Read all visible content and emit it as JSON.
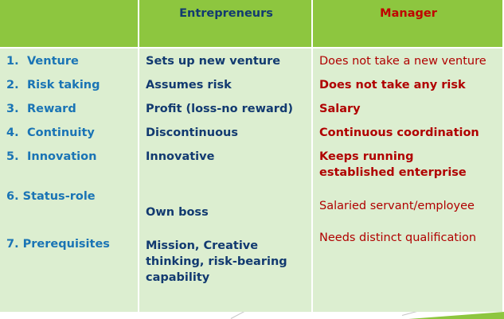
{
  "header": {
    "col1": "",
    "col2": "Entrepreneurs",
    "col3": "Manager"
  },
  "rows": [
    {
      "num": "1.",
      "feature": "Venture",
      "entrepreneur": "Sets up new venture",
      "manager": "Does not take a new venture"
    },
    {
      "num": "2.",
      "feature": "Risk taking",
      "entrepreneur": "Assumes risk",
      "manager": "Does not take any risk"
    },
    {
      "num": "3.",
      "feature": "Reward",
      "entrepreneur": "Profit (loss-no reward)",
      "manager": "Salary"
    },
    {
      "num": "4.",
      "feature": "Continuity",
      "entrepreneur": "Discontinuous",
      "manager": "Continuous coordination"
    },
    {
      "num": "5.",
      "feature": "Innovation",
      "entrepreneur": "Innovative",
      "manager": "Keeps running established enterprise"
    },
    {
      "num": "",
      "feature": "6. Status-role",
      "entrepreneur": "Own boss",
      "manager": "Salaried servant/employee"
    },
    {
      "num": "",
      "feature": "7. Prerequisites",
      "entrepreneur": "Mission, Creative thinking, risk-bearing capability",
      "manager": "Needs distinct qualification"
    }
  ],
  "colors": {
    "header_bg": "#8dc63f",
    "body_bg": "#dceed0",
    "feature_text": "#1a74b5",
    "entrepreneur_text": "#123a70",
    "manager_text": "#b00000"
  }
}
